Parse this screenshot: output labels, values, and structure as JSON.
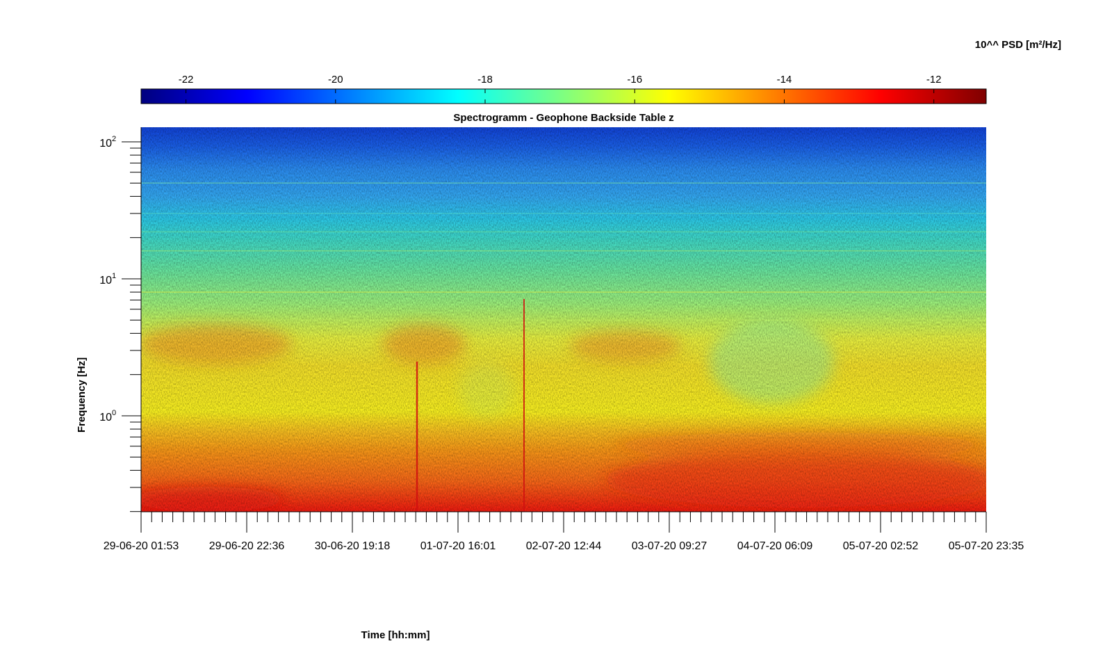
{
  "chart_data": {
    "type": "heatmap",
    "title": "Spectrogramm - Geophone Backside Table z",
    "xlabel": "Time [hh:mm]",
    "ylabel": "Frequency [Hz]",
    "y_scale": "log",
    "ylim": [
      0.2,
      125
    ],
    "y_ticks": [
      {
        "value": 1,
        "base": "10",
        "exp": "0"
      },
      {
        "value": 10,
        "base": "10",
        "exp": "1"
      },
      {
        "value": 100,
        "base": "10",
        "exp": "2"
      }
    ],
    "x_ticks": [
      "29-06-20 01:53",
      "29-06-20 22:36",
      "30-06-20 19:18",
      "01-07-20 16:01",
      "02-07-20 12:44",
      "03-07-20 09:27",
      "04-07-20 06:09",
      "05-07-20 02:52",
      "05-07-20 23:35"
    ],
    "colorbar": {
      "label": "10^^ PSD [m²/Hz]",
      "range": [
        -22.6,
        -11.3
      ],
      "ticks": [
        "-22",
        "-20",
        "-18",
        "-16",
        "-14",
        "-12"
      ],
      "tick_values": [
        -22,
        -20,
        -18,
        -16,
        -14,
        -12
      ],
      "colormap": "jet",
      "position": "top"
    },
    "features": {
      "frequency_bands": [
        {
          "freq_range_hz": [
            30,
            125
          ],
          "log_psd": -20.5
        },
        {
          "freq_range_hz": [
            10,
            30
          ],
          "log_psd": -18.0
        },
        {
          "freq_range_hz": [
            1,
            10
          ],
          "log_psd": -16.5
        },
        {
          "freq_range_hz": [
            0.2,
            1
          ],
          "log_psd": -13.0
        }
      ],
      "transient_events_time": [
        "01-07-20 05:00",
        "02-07-20 05:00"
      ]
    }
  }
}
